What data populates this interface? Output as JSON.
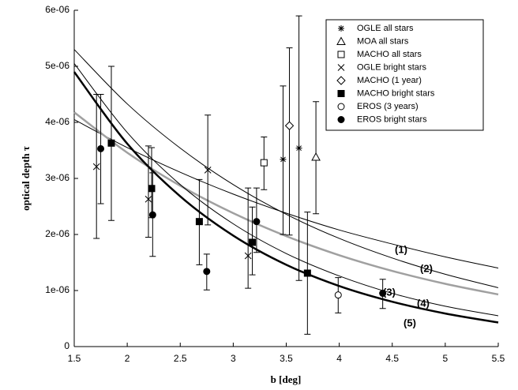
{
  "chart_data": {
    "type": "scatter",
    "xlabel": "b [deg]",
    "ylabel": "optical depth τ",
    "xlim": [
      1.5,
      5.5
    ],
    "xticks": [
      1.5,
      2,
      2.5,
      3,
      3.5,
      4,
      4.5,
      5,
      5.5
    ],
    "ylim": [
      0,
      6e-06
    ],
    "yticks": [
      0,
      {
        "value": 1e-06,
        "label": "1e-06"
      },
      {
        "value": 2e-06,
        "label": "2e-06"
      },
      {
        "value": 3e-06,
        "label": "3e-06"
      },
      {
        "value": 4e-06,
        "label": "4e-06"
      },
      {
        "value": 5e-06,
        "label": "5e-06"
      },
      {
        "value": 6e-06,
        "label": "6e-06"
      }
    ],
    "series": [
      {
        "name": "OGLE all stars",
        "marker": "asterisk",
        "color": "#000000",
        "x": [
          3.47,
          3.62
        ],
        "values": [
          3.34e-06,
          3.54e-06
        ],
        "low": [
          2e-06,
          1.18e-06
        ],
        "high": [
          4.65e-06,
          5.9e-06
        ]
      },
      {
        "name": "MOA all stars",
        "marker": "triangle",
        "color": "#000000",
        "x": [
          3.78
        ],
        "values": [
          3.38e-06
        ],
        "low": [
          2.37e-06
        ],
        "high": [
          4.37e-06
        ]
      },
      {
        "name": "MACHO all stars",
        "marker": "square-open",
        "color": "#000000",
        "x": [
          3.29
        ],
        "values": [
          3.28e-06
        ],
        "low": [
          2.8e-06
        ],
        "high": [
          3.74e-06
        ]
      },
      {
        "name": "OGLE bright stars",
        "marker": "cross",
        "color": "#000000",
        "x": [
          1.71,
          2.2,
          2.76,
          3.14
        ],
        "values": [
          3.21e-06,
          2.63e-06,
          3.15e-06,
          1.62e-06
        ],
        "low": [
          1.93e-06,
          1.95e-06,
          2.17e-06,
          1.04e-06
        ],
        "high": [
          4.5e-06,
          3.58e-06,
          4.13e-06,
          2.83e-06
        ]
      },
      {
        "name": "MACHO (1 year)",
        "marker": "diamond",
        "color": "#000000",
        "x": [
          3.53
        ],
        "values": [
          3.94e-06
        ],
        "low": [
          1.99e-06
        ],
        "high": [
          5.33e-06
        ]
      },
      {
        "name": "MACHO bright stars",
        "marker": "square-filled",
        "color": "#000000",
        "x": [
          1.85,
          2.23,
          2.68,
          3.18,
          3.7
        ],
        "values": [
          3.63e-06,
          2.82e-06,
          2.23e-06,
          1.86e-06,
          1.31e-06
        ],
        "low": [
          2.25e-06,
          2.3e-06,
          1.46e-06,
          1.28e-06,
          2.2e-07
        ],
        "high": [
          5e-06,
          3.55e-06,
          2.98e-06,
          2.49e-06,
          2.4e-06
        ]
      },
      {
        "name": "EROS (3 years)",
        "marker": "circle-open",
        "color": "#000000",
        "x": [
          3.99
        ],
        "values": [
          9.2e-07
        ],
        "low": [
          6e-07
        ],
        "high": [
          1.23e-06
        ]
      },
      {
        "name": "EROS bright stars",
        "marker": "circle-filled",
        "color": "#000000",
        "x": [
          1.75,
          2.24,
          2.75,
          3.22,
          4.41
        ],
        "values": [
          3.53e-06,
          2.35e-06,
          1.34e-06,
          2.23e-06,
          9.5e-07
        ],
        "low": [
          2.55e-06,
          1.61e-06,
          1.01e-06,
          1.68e-06,
          6.8e-07
        ],
        "high": [
          4.5e-06,
          3.1e-06,
          1.65e-06,
          2.83e-06,
          1.2e-06
        ]
      }
    ],
    "curve_x": [
      1.5,
      2,
      2.5,
      3,
      3.5,
      4,
      4.5,
      5,
      5.5
    ],
    "curves": [
      {
        "label": "(1)",
        "color": "#000000",
        "width": 1,
        "values": [
          4.05e-06,
          3.55e-06,
          3.11e-06,
          2.72e-06,
          2.38e-06,
          2.08e-06,
          1.83e-06,
          1.6e-06,
          1.4e-06
        ]
      },
      {
        "label": "(2)",
        "color": "#000000",
        "width": 1,
        "values": [
          5.3e-06,
          4.33e-06,
          3.54e-06,
          2.89e-06,
          2.36e-06,
          1.93e-06,
          1.58e-06,
          1.29e-06,
          1.05e-06
        ]
      },
      {
        "label": "(3)",
        "color": "#a0a0a0",
        "width": 2.5,
        "values": [
          4.18e-06,
          3.46e-06,
          2.87e-06,
          2.38e-06,
          1.97e-06,
          1.63e-06,
          1.35e-06,
          1.12e-06,
          9.3e-07
        ]
      },
      {
        "label": "(4)",
        "color": "#000000",
        "width": 1,
        "values": [
          5.05e-06,
          3.82e-06,
          2.89e-06,
          2.19e-06,
          1.66e-06,
          1.26e-06,
          9.5e-07,
          7.2e-07,
          5.5e-07
        ]
      },
      {
        "label": "(5)",
        "color": "#000000",
        "width": 2.5,
        "values": [
          4.9e-06,
          3.62e-06,
          2.68e-06,
          1.98e-06,
          1.46e-06,
          1.08e-06,
          8e-07,
          5.9e-07,
          4.3e-07
        ]
      }
    ]
  }
}
